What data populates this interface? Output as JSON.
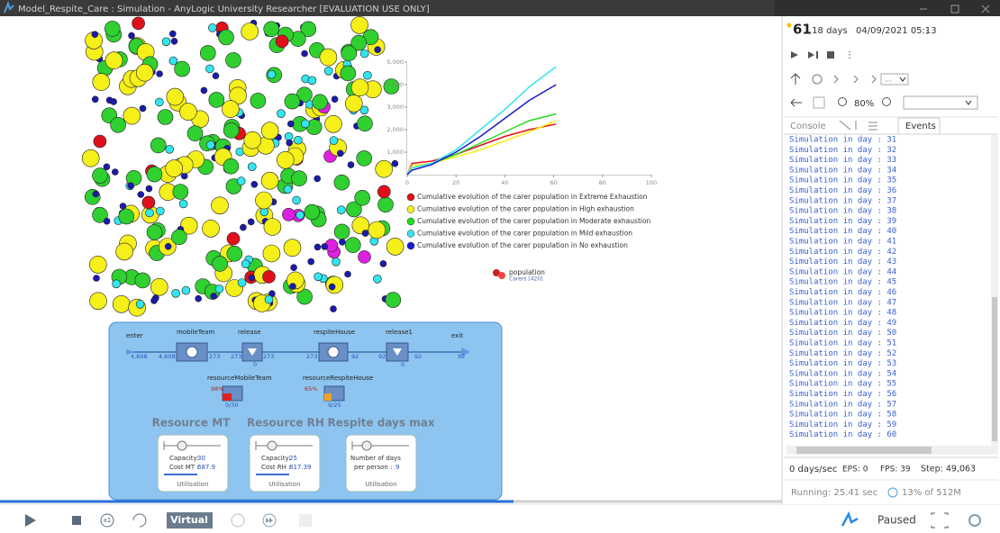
{
  "window": {
    "title": "Model_Respite_Care : Simulation - AnyLogic University Researcher [EVALUATION USE ONLY]"
  },
  "chart": {
    "type": "line",
    "x": [
      0,
      2,
      10,
      20,
      30,
      40,
      50,
      61
    ],
    "xlim": [
      0,
      100
    ],
    "xticks": [
      0,
      20,
      40,
      60,
      80,
      100
    ],
    "ylim": [
      0,
      5000
    ],
    "yticks": [
      {
        "value": 1000,
        "label": "1,000"
      },
      {
        "value": 2000,
        "label": "2,000"
      },
      {
        "value": 3000,
        "label": "3,000"
      },
      {
        "value": 4000,
        "label": "4,000"
      },
      {
        "value": 5000,
        "label": "5,000"
      }
    ],
    "series": [
      {
        "name": "Cumulative evolution of the carer population in Extreme Exhaustion",
        "color": "#e0101a",
        "values": [
          0,
          500,
          600,
          900,
          1300,
          1700,
          2000,
          2250
        ]
      },
      {
        "name": "Cumulative evolution of the carer population in High exhaustion",
        "color": "#f5ef1a",
        "values": [
          0,
          400,
          500,
          800,
          1100,
          1500,
          1900,
          2400
        ]
      },
      {
        "name": "Cumulative evolution of the carer population in Moderate exhaustion",
        "color": "#22dd22",
        "values": [
          0,
          300,
          500,
          900,
          1400,
          1900,
          2400,
          2700
        ]
      },
      {
        "name": "Cumulative evolution of the carer population in Mild exhaustion",
        "color": "#33e5ee",
        "values": [
          0,
          300,
          500,
          1100,
          2000,
          2900,
          3900,
          4800
        ]
      },
      {
        "name": "Cumulative evolution of the carer population in No exhaustion",
        "color": "#1a1acc",
        "values": [
          0,
          200,
          450,
          1000,
          1700,
          2500,
          3300,
          4000
        ]
      }
    ]
  },
  "population": {
    "label": "population",
    "count": "Carers [420]"
  },
  "flow": {
    "labels": [
      "enter",
      "mobileTeam",
      "release",
      "respiteHouse",
      "release1",
      "exit"
    ],
    "counts": [
      "4,608",
      "4,608",
      "273",
      "273",
      "273",
      "0",
      "273",
      "92",
      "92",
      "92",
      "0",
      "92"
    ],
    "resources": [
      {
        "name": "resourceMobileTeam",
        "utilisation": "98%",
        "usage": "0/30"
      },
      {
        "name": "resourceRespiteHouse",
        "utilisation": "65%",
        "usage": "9/25"
      }
    ]
  },
  "controls": [
    {
      "heading": "Resource MT",
      "lines": [
        [
          "Capacity:",
          "30"
        ],
        [
          "Cost MT :",
          "687.9"
        ]
      ],
      "footer": "Utilisation"
    },
    {
      "heading": "Resource RH",
      "lines": [
        [
          "Capacity:",
          "25"
        ],
        [
          "Cost RH :",
          "817.39"
        ]
      ],
      "footer": "Utilisation"
    },
    {
      "heading": "Respite days max",
      "lines": [
        [
          "Number of days"
        ],
        [
          "per person :",
          "9"
        ]
      ],
      "footer": "Utilisation"
    }
  ],
  "toolbar": {
    "speed": "x1",
    "mode": "Virtual",
    "state": "Paused"
  },
  "panel": {
    "day": "61",
    "unit": ".18 days",
    "date": "04/09/2021 05:13",
    "nav_dropdown": "...",
    "zoom": "80%",
    "tabs": [
      "Console",
      "Events"
    ],
    "console": [
      "Simulation in day : 31",
      "Simulation in day : 32",
      "Simulation in day : 33",
      "Simulation in day : 34",
      "Simulation in day : 35",
      "Simulation in day : 36",
      "Simulation in day : 37",
      "Simulation in day : 38",
      "Simulation in day : 39",
      "Simulation in day : 40",
      "Simulation in day : 41",
      "Simulation in day : 42",
      "Simulation in day : 43",
      "Simulation in day : 44",
      "Simulation in day : 45",
      "Simulation in day : 46",
      "Simulation in day : 47",
      "Simulation in day : 48",
      "Simulation in day : 49",
      "Simulation in day : 50",
      "Simulation in day : 51",
      "Simulation in day : 52",
      "Simulation in day : 53",
      "Simulation in day : 54",
      "Simulation in day : 55",
      "Simulation in day : 56",
      "Simulation in day : 57",
      "Simulation in day : 58",
      "Simulation in day : 59",
      "Simulation in day : 60"
    ],
    "status": {
      "rate": "0 days/sec",
      "eps": "EPS: 0",
      "fps": "FPS: 39",
      "step": "Step: 49,063",
      "running": "Running: 25.41 sec",
      "memory": "13% of 512M"
    }
  }
}
